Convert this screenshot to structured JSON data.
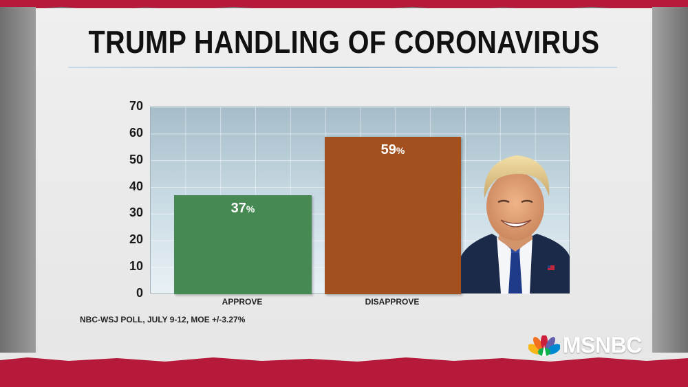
{
  "chart_data": {
    "type": "bar",
    "title": "TRUMP HANDLING OF CORONAVIRUS",
    "categories": [
      "APPROVE",
      "DISAPPROVE"
    ],
    "values": [
      37,
      59
    ],
    "value_labels": [
      "37",
      "59"
    ],
    "value_suffix": "%",
    "ylim": [
      0,
      70
    ],
    "yticks": [
      "0",
      "10",
      "20",
      "30",
      "40",
      "50",
      "60",
      "70"
    ],
    "bar_colors": [
      "#478952",
      "#a3501f"
    ],
    "grid": true
  },
  "source_note": "NBC-WSJ POLL, JULY 9-12, MOE +/-3.27%",
  "brand": {
    "name": "MSNBC"
  },
  "colors": {
    "band": "#b51a3a",
    "approve": "#478952",
    "disapprove": "#a3501f"
  }
}
